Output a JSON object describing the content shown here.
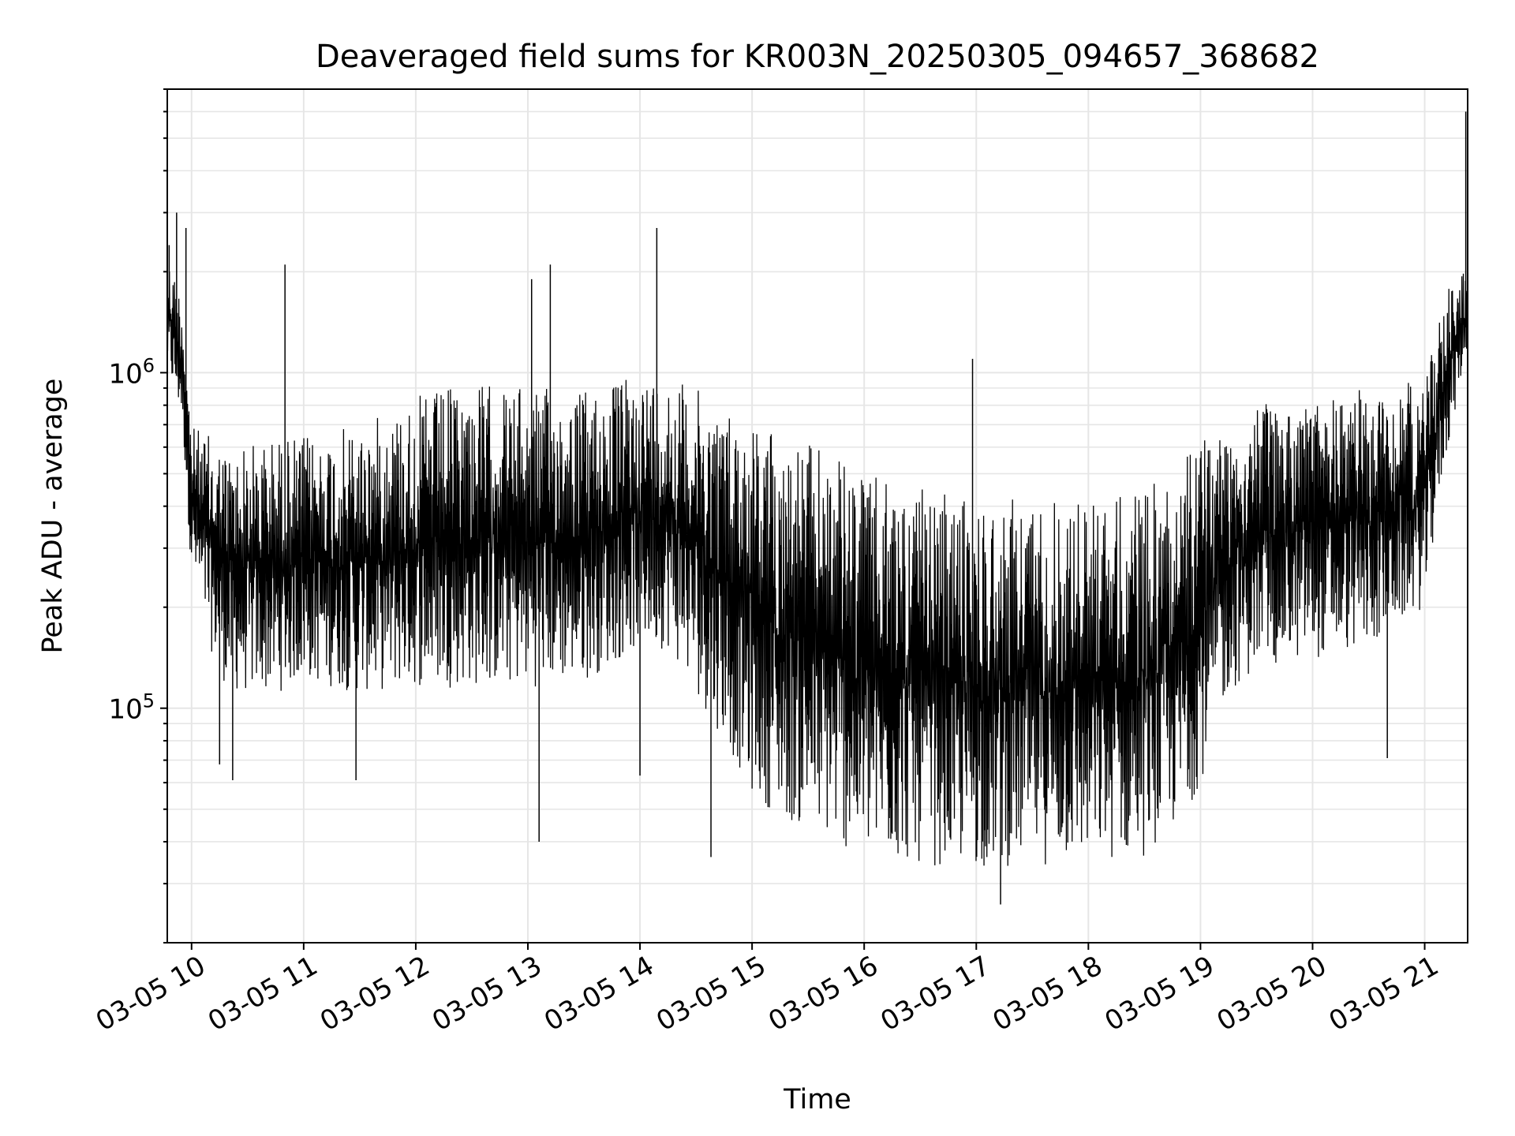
{
  "chart_data": {
    "type": "line",
    "title": "Deaveraged field sums for KR003N_20250305_094657_368682",
    "xlabel": "Time",
    "ylabel": "Peak ADU - average",
    "xlim": [
      "2025-03-05 09:47",
      "2025-03-05 21:23"
    ],
    "ylim": [
      20000,
      7000000
    ],
    "yscale": "log",
    "grid": true,
    "x_ticks": [
      "2025-03-05 10:00",
      "2025-03-05 11:00",
      "2025-03-05 12:00",
      "2025-03-05 13:00",
      "2025-03-05 14:00",
      "2025-03-05 15:00",
      "2025-03-05 16:00",
      "2025-03-05 17:00",
      "2025-03-05 18:00",
      "2025-03-05 19:00",
      "2025-03-05 20:00",
      "2025-03-05 21:00"
    ],
    "x_tick_labels": [
      "03-05 10",
      "03-05 11",
      "03-05 12",
      "03-05 13",
      "03-05 14",
      "03-05 15",
      "03-05 16",
      "03-05 17",
      "03-05 18",
      "03-05 19",
      "03-05 20",
      "03-05 21"
    ],
    "y_ticks": [
      100000,
      1000000
    ],
    "y_tick_labels": [
      {
        "base": "10",
        "exp": "5"
      },
      {
        "base": "10",
        "exp": "6"
      }
    ],
    "line_color": "#000000",
    "grid_color": "#e6e6e6",
    "series": [
      {
        "x": [
          "2025-03-05 09:47",
          "2025-03-05 09:55",
          "2025-03-05 10:00",
          "2025-03-05 10:10",
          "2025-03-05 10:20",
          "2025-03-05 10:30",
          "2025-03-05 10:45",
          "2025-03-05 11:00",
          "2025-03-05 11:30",
          "2025-03-05 12:00",
          "2025-03-05 12:30",
          "2025-03-05 13:00",
          "2025-03-05 13:30",
          "2025-03-05 14:00",
          "2025-03-05 14:15",
          "2025-03-05 14:30",
          "2025-03-05 14:45",
          "2025-03-05 15:00",
          "2025-03-05 15:20",
          "2025-03-05 15:40",
          "2025-03-05 16:00",
          "2025-03-05 16:30",
          "2025-03-05 17:00",
          "2025-03-05 17:30",
          "2025-03-05 18:00",
          "2025-03-05 18:30",
          "2025-03-05 18:50",
          "2025-03-05 19:00",
          "2025-03-05 19:15",
          "2025-03-05 19:30",
          "2025-03-05 20:00",
          "2025-03-05 20:30",
          "2025-03-05 21:00",
          "2025-03-05 21:10",
          "2025-03-05 21:23"
        ],
        "y_low": [
          1000000,
          700000,
          250000,
          150000,
          110000,
          110000,
          110000,
          120000,
          110000,
          115000,
          115000,
          115000,
          120000,
          150000,
          150000,
          110000,
          80000,
          55000,
          45000,
          40000,
          35000,
          34000,
          33000,
          34000,
          34000,
          36000,
          45000,
          60000,
          110000,
          130000,
          140000,
          150000,
          200000,
          500000,
          1200000
        ],
        "y_high": [
          2300000,
          1700000,
          700000,
          650000,
          600000,
          620000,
          650000,
          650000,
          700000,
          850000,
          950000,
          900000,
          900000,
          1000000,
          1000000,
          900000,
          800000,
          750000,
          650000,
          600000,
          500000,
          450000,
          420000,
          430000,
          430000,
          450000,
          550000,
          650000,
          750000,
          800000,
          850000,
          900000,
          950000,
          1800000,
          2100000
        ]
      }
    ],
    "spikes": [
      {
        "x": "2025-03-05 09:48",
        "y": 2400000
      },
      {
        "x": "2025-03-05 09:52",
        "y": 3000000
      },
      {
        "x": "2025-03-05 09:57",
        "y": 2700000
      },
      {
        "x": "2025-03-05 10:50",
        "y": 2100000
      },
      {
        "x": "2025-03-05 13:02",
        "y": 1900000
      },
      {
        "x": "2025-03-05 13:12",
        "y": 2100000
      },
      {
        "x": "2025-03-05 14:09",
        "y": 2700000
      },
      {
        "x": "2025-03-05 16:58",
        "y": 1100000
      },
      {
        "x": "2025-03-05 21:22",
        "y": 6000000
      }
    ],
    "dips": [
      {
        "x": "2025-03-05 10:15",
        "y": 68000
      },
      {
        "x": "2025-03-05 10:22",
        "y": 61000
      },
      {
        "x": "2025-03-05 11:28",
        "y": 61000
      },
      {
        "x": "2025-03-05 13:06",
        "y": 40000
      },
      {
        "x": "2025-03-05 14:00",
        "y": 63000
      },
      {
        "x": "2025-03-05 14:38",
        "y": 36000
      },
      {
        "x": "2025-03-05 17:13",
        "y": 26000
      },
      {
        "x": "2025-03-05 20:40",
        "y": 71000
      }
    ]
  }
}
